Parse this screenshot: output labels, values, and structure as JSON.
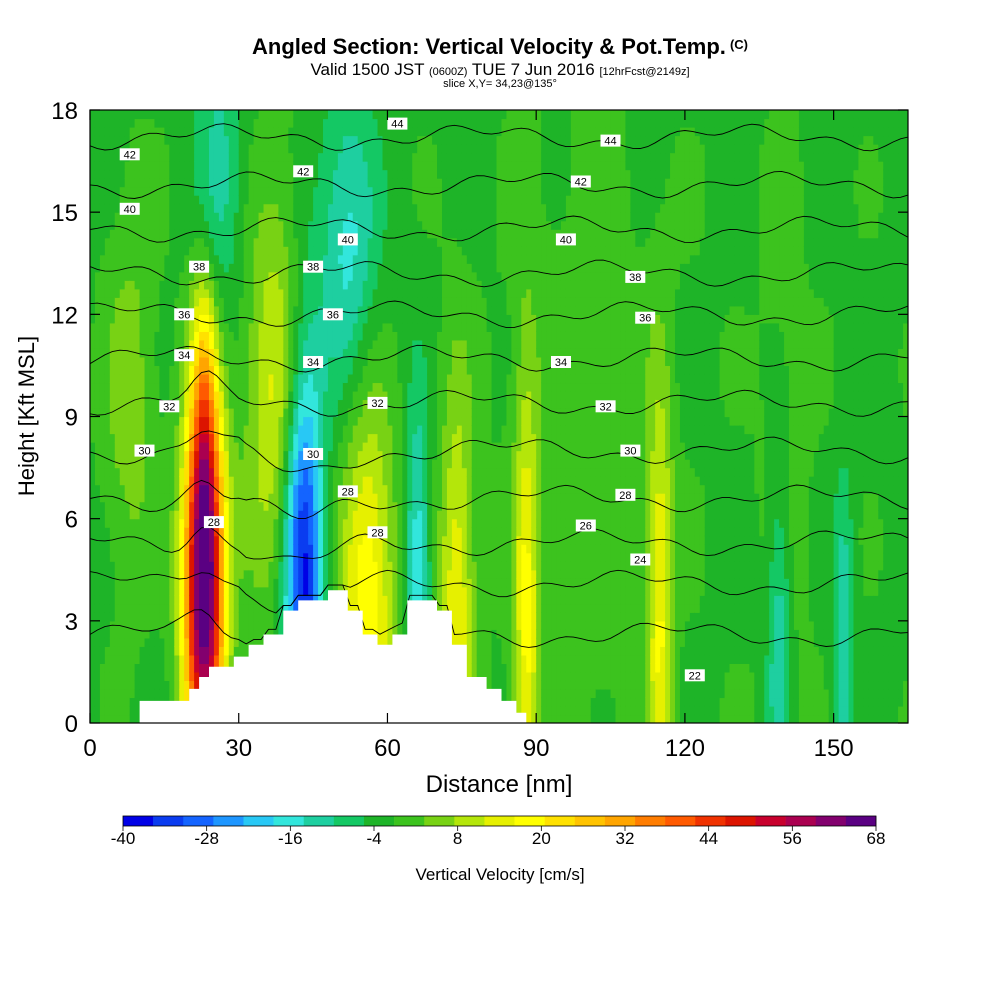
{
  "title": {
    "main": "Angled Section: Vertical Velocity & Pot.Temp.",
    "main_unit": "(C)",
    "valid_prefix": "Valid 1500 JST",
    "valid_z": "(0600Z)",
    "valid_date": "TUE 7 Jun 2016",
    "forecast": "[12hrFcst@2149z]",
    "slice": "slice X,Y= 34,23@135°"
  },
  "chart_data": {
    "type": "heatmap",
    "xlabel": "Distance [nm]",
    "ylabel": "Height [Kft MSL]",
    "xlim": [
      0,
      165
    ],
    "ylim": [
      0,
      18
    ],
    "x_ticks": [
      "0",
      "30",
      "60",
      "90",
      "120",
      "150"
    ],
    "x_tick_values": [
      0,
      30,
      60,
      90,
      120,
      150
    ],
    "y_ticks": [
      "0",
      "3",
      "6",
      "9",
      "12",
      "15",
      "18"
    ],
    "y_tick_values": [
      0,
      3,
      6,
      9,
      12,
      15,
      18
    ],
    "colorbar": {
      "label": "Vertical Velocity [cm/s]",
      "tick_labels": [
        "-40",
        "-28",
        "-16",
        "-4",
        "8",
        "20",
        "32",
        "44",
        "56",
        "68"
      ],
      "colors": [
        "#0000e6",
        "#0a3cf0",
        "#1464ff",
        "#1e96ff",
        "#28c8f5",
        "#32e6dc",
        "#1ecfa0",
        "#14c864",
        "#1eb428",
        "#3cc31e",
        "#78d214",
        "#b4e60a",
        "#e6f000",
        "#ffff00",
        "#ffe100",
        "#ffc300",
        "#ffa500",
        "#ff7d00",
        "#ff5a00",
        "#f03200",
        "#dc1400",
        "#c8002d",
        "#aa0050",
        "#82006e",
        "#5a0082"
      ]
    },
    "background_value": -2,
    "terrain_color": "#ffffff",
    "terrain": [
      {
        "x": 10,
        "h": 0.65
      },
      {
        "x": 20,
        "h": 1.0
      },
      {
        "x": 22,
        "h": 1.35
      },
      {
        "x": 24,
        "h": 1.65
      },
      {
        "x": 29,
        "h": 1.95
      },
      {
        "x": 32,
        "h": 2.3
      },
      {
        "x": 35,
        "h": 2.6
      },
      {
        "x": 39,
        "h": 3.3
      },
      {
        "x": 42,
        "h": 3.6
      },
      {
        "x": 48,
        "h": 3.9
      },
      {
        "x": 52,
        "h": 3.3
      },
      {
        "x": 55,
        "h": 2.6
      },
      {
        "x": 58,
        "h": 2.3
      },
      {
        "x": 61,
        "h": 2.6
      },
      {
        "x": 64,
        "h": 3.6
      },
      {
        "x": 70,
        "h": 3.3
      },
      {
        "x": 73,
        "h": 2.3
      },
      {
        "x": 76,
        "h": 1.35
      },
      {
        "x": 80,
        "h": 1.0
      },
      {
        "x": 83,
        "h": 0.65
      },
      {
        "x": 86,
        "h": 0.3
      },
      {
        "x": 88,
        "h": 0
      }
    ],
    "updrafts": [
      {
        "x": 23,
        "y": 4,
        "w": 8,
        "h": 11,
        "v": 72,
        "note": "intense updraft"
      },
      {
        "x": 23,
        "y": 9,
        "w": 5,
        "h": 9,
        "v": 18
      },
      {
        "x": 38,
        "y": 9.5,
        "w": 13,
        "h": 12,
        "v": 16
      },
      {
        "x": 56,
        "y": 3.5,
        "w": 11,
        "h": 12,
        "v": 22
      },
      {
        "x": 74,
        "y": 2.8,
        "w": 7,
        "h": 14,
        "v": 18
      },
      {
        "x": 88,
        "y": 2.2,
        "w": 5,
        "h": 17,
        "v": 18
      },
      {
        "x": 115,
        "y": 3.0,
        "w": 5,
        "h": 14,
        "v": 18
      },
      {
        "x": 8,
        "y": 9.5,
        "w": 10,
        "h": 11,
        "v": 8
      },
      {
        "x": 100,
        "y": 8,
        "w": 30,
        "h": 18,
        "v": 4
      },
      {
        "x": 140,
        "y": 6,
        "w": 10,
        "h": 20,
        "v": 4
      }
    ],
    "downdrafts": [
      {
        "x": 43,
        "y": 4.8,
        "w": 8,
        "h": 13,
        "v": -38,
        "note": "strong downdraft"
      },
      {
        "x": 66,
        "y": 3.6,
        "w": 5,
        "h": 11,
        "v": -18
      },
      {
        "x": 52,
        "y": 14,
        "w": 12,
        "h": 9,
        "v": -14
      },
      {
        "x": 26,
        "y": 16,
        "w": 10,
        "h": 8,
        "v": -10
      },
      {
        "x": 139,
        "y": 2.2,
        "w": 5,
        "h": 11,
        "v": -14
      },
      {
        "x": 152,
        "y": 2.5,
        "w": 4,
        "h": 9,
        "v": -12
      }
    ],
    "isentropes": [
      {
        "theta": 22,
        "base": 2.6
      },
      {
        "theta": 24,
        "base": 4.1
      },
      {
        "theta": 26,
        "base": 5.3
      },
      {
        "theta": 28,
        "base": 6.6
      },
      {
        "theta": 30,
        "base": 8.0
      },
      {
        "theta": 32,
        "base": 9.4
      },
      {
        "theta": 34,
        "base": 10.7
      },
      {
        "theta": 36,
        "base": 12.0
      },
      {
        "theta": 38,
        "base": 13.2
      },
      {
        "theta": 40,
        "base": 14.5
      },
      {
        "theta": 42,
        "base": 15.8
      },
      {
        "theta": 44,
        "base": 17.2
      }
    ],
    "contour_labels": [
      {
        "text": "42",
        "x": 8,
        "y": 16.7
      },
      {
        "text": "40",
        "x": 8,
        "y": 15.1
      },
      {
        "text": "38",
        "x": 22,
        "y": 13.4
      },
      {
        "text": "36",
        "x": 19,
        "y": 12.0
      },
      {
        "text": "34",
        "x": 19,
        "y": 10.8
      },
      {
        "text": "32",
        "x": 16,
        "y": 9.3
      },
      {
        "text": "30",
        "x": 11,
        "y": 8.0
      },
      {
        "text": "28",
        "x": 25,
        "y": 5.9
      },
      {
        "text": "42",
        "x": 43,
        "y": 16.2
      },
      {
        "text": "38",
        "x": 45,
        "y": 13.4
      },
      {
        "text": "36",
        "x": 49,
        "y": 12.0
      },
      {
        "text": "34",
        "x": 45,
        "y": 10.6
      },
      {
        "text": "30",
        "x": 45,
        "y": 7.9
      },
      {
        "text": "28",
        "x": 52,
        "y": 6.8
      },
      {
        "text": "28",
        "x": 58,
        "y": 5.6
      },
      {
        "text": "40",
        "x": 52,
        "y": 14.2
      },
      {
        "text": "44",
        "x": 62,
        "y": 17.6
      },
      {
        "text": "32",
        "x": 58,
        "y": 9.4
      },
      {
        "text": "42",
        "x": 99,
        "y": 15.9
      },
      {
        "text": "44",
        "x": 105,
        "y": 17.1
      },
      {
        "text": "40",
        "x": 96,
        "y": 14.2
      },
      {
        "text": "38",
        "x": 110,
        "y": 13.1
      },
      {
        "text": "36",
        "x": 112,
        "y": 11.9
      },
      {
        "text": "34",
        "x": 95,
        "y": 10.6
      },
      {
        "text": "32",
        "x": 104,
        "y": 9.3
      },
      {
        "text": "30",
        "x": 109,
        "y": 8.0
      },
      {
        "text": "28",
        "x": 108,
        "y": 6.7
      },
      {
        "text": "26",
        "x": 100,
        "y": 5.8
      },
      {
        "text": "24",
        "x": 111,
        "y": 4.8
      },
      {
        "text": "22",
        "x": 122,
        "y": 1.4
      }
    ]
  }
}
